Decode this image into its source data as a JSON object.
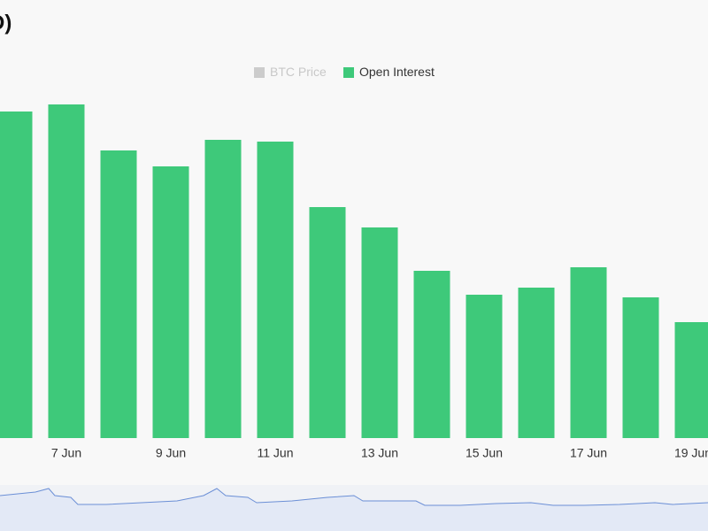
{
  "chart_data": {
    "type": "bar",
    "title": "D)",
    "categories": [
      null,
      "7 Jun",
      null,
      "9 Jun",
      null,
      "11 Jun",
      null,
      "13 Jun",
      null,
      "15 Jun",
      null,
      "17 Jun",
      null,
      "19 Jun"
    ],
    "series": [
      {
        "name": "BTC Price",
        "color": "#cccccc",
        "hidden": true,
        "values": [
          null,
          null,
          null,
          null,
          null,
          null,
          null,
          null,
          null,
          null,
          null,
          null,
          null,
          null
        ]
      },
      {
        "name": "Open Interest",
        "color": "#3ec97a",
        "values": [
          369,
          377,
          325,
          307,
          337,
          335,
          261,
          238,
          189,
          162,
          170,
          193,
          159,
          131
        ]
      }
    ],
    "ylim": [
      0,
      400
    ],
    "legend": "top"
  }
}
